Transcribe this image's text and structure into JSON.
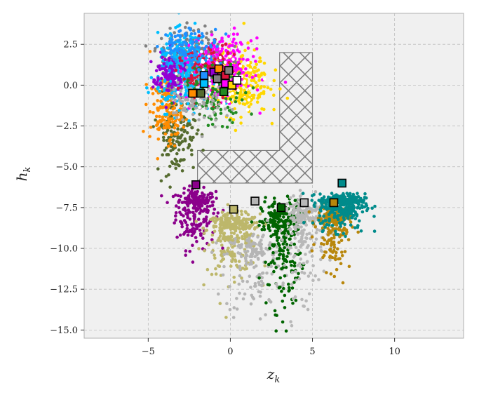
{
  "chart_data": {
    "type": "scatter",
    "title": "",
    "xlabel": "z",
    "xlabel_sub": "k",
    "ylabel": "h",
    "ylabel_sub": "k",
    "xlim": [
      -8.9,
      14.2
    ],
    "ylim": [
      -15.5,
      4.4
    ],
    "x_ticks": [
      -5,
      0,
      5,
      10
    ],
    "x_tick_labels": [
      "−5",
      "0",
      "5",
      "10"
    ],
    "y_ticks": [
      2.5,
      0.0,
      -2.5,
      -5.0,
      -7.5,
      -10.0,
      -12.5,
      -15.0
    ],
    "y_tick_labels": [
      "2.5",
      "0.0",
      "−2.5",
      "−5.0",
      "−7.5",
      "−10.0",
      "−12.5",
      "−15.0"
    ],
    "grid": true,
    "background_color": "#f0f0f0",
    "hatched_region": {
      "polygon": [
        [
          3,
          2
        ],
        [
          5,
          2
        ],
        [
          5,
          -6
        ],
        [
          -2,
          -6
        ],
        [
          -2,
          -4
        ],
        [
          3,
          -4
        ]
      ],
      "pattern": "cross-hatch",
      "color": "#808080"
    },
    "clusters": [
      {
        "color": "#8b008b",
        "center": [
          -2.1,
          -6.1
        ],
        "spread": [
          0.6,
          1.0
        ],
        "count": 260,
        "shape": "cloud"
      },
      {
        "color": "#bdb76b",
        "center": [
          0.2,
          -7.6
        ],
        "spread": [
          0.8,
          1.0
        ],
        "count": 320,
        "shape": "cloud"
      },
      {
        "color": "#b5b5b5",
        "center": [
          1.5,
          -9.2
        ],
        "spread": [
          0.9,
          1.5
        ],
        "count": 170,
        "shape": "cloud"
      },
      {
        "color": "#006400",
        "center": [
          3.1,
          -7.5
        ],
        "spread": [
          0.6,
          1.8
        ],
        "count": 280,
        "shape": "cloud"
      },
      {
        "color": "#b8b8b8",
        "center": [
          4.5,
          -7.2
        ],
        "spread": [
          0.6,
          1.6
        ],
        "count": 230,
        "shape": "cloud"
      },
      {
        "color": "#b8860b",
        "center": [
          6.3,
          -7.2
        ],
        "spread": [
          0.5,
          1.1
        ],
        "count": 210,
        "shape": "cloud"
      },
      {
        "color": "#008b8b",
        "center": [
          6.8,
          -6.0
        ],
        "spread": [
          0.7,
          0.6
        ],
        "count": 360,
        "shape": "cloud"
      },
      {
        "color": "#556b2f",
        "center": [
          -3.3,
          -3.0
        ],
        "spread": [
          0.6,
          1.2
        ],
        "count": 140,
        "shape": "cloud"
      },
      {
        "color": "#ff8c00",
        "center": [
          -3.9,
          -1.5
        ],
        "spread": [
          0.5,
          1.0
        ],
        "count": 150,
        "shape": "cloud"
      },
      {
        "color": "#ffd700",
        "center": [
          0.5,
          0.2
        ],
        "spread": [
          0.9,
          1.0
        ],
        "count": 280,
        "shape": "cloud"
      },
      {
        "color": "#808080",
        "center": [
          -2.2,
          1.6
        ],
        "spread": [
          1.0,
          0.9
        ],
        "count": 300,
        "shape": "cloud"
      },
      {
        "color": "#00bfff",
        "center": [
          -2.8,
          0.8
        ],
        "spread": [
          0.8,
          1.1
        ],
        "count": 350,
        "shape": "cloud"
      },
      {
        "color": "#ff00ff",
        "center": [
          -0.5,
          1.0
        ],
        "spread": [
          0.9,
          0.9
        ],
        "count": 300,
        "shape": "cloud"
      },
      {
        "color": "#9400d3",
        "center": [
          -3.7,
          0.6
        ],
        "spread": [
          0.5,
          0.7
        ],
        "count": 120,
        "shape": "cloud"
      },
      {
        "color": "#dc143c",
        "center": [
          -1.5,
          0.8
        ],
        "spread": [
          0.8,
          0.9
        ],
        "count": 130,
        "shape": "cloud"
      },
      {
        "color": "#228b22",
        "center": [
          -1.0,
          -0.5
        ],
        "spread": [
          1.0,
          0.9
        ],
        "count": 110,
        "shape": "cloud"
      },
      {
        "color": "#1e90ff",
        "center": [
          -2.5,
          2.3
        ],
        "spread": [
          0.9,
          0.6
        ],
        "count": 110,
        "shape": "cloud"
      },
      {
        "color": "#a9a9a9",
        "center": [
          -1.9,
          -0.8
        ],
        "spread": [
          0.9,
          0.8
        ],
        "count": 90,
        "shape": "cloud"
      },
      {
        "color": "#ffffff",
        "center": [
          -0.4,
          0.4
        ],
        "spread": [
          1.2,
          1.0
        ],
        "count": 60,
        "shape": "cloud"
      }
    ],
    "markers": [
      {
        "x": -2.1,
        "y": -6.1,
        "color": "#8b008b"
      },
      {
        "x": 0.2,
        "y": -7.6,
        "color": "#bdb76b"
      },
      {
        "x": 1.5,
        "y": -7.1,
        "color": "#b5b5b5"
      },
      {
        "x": 3.1,
        "y": -7.5,
        "color": "#006400"
      },
      {
        "x": 4.5,
        "y": -7.2,
        "color": "#b8b8b8"
      },
      {
        "x": 6.3,
        "y": -7.2,
        "color": "#b8860b"
      },
      {
        "x": 6.8,
        "y": -6.0,
        "color": "#008b8b"
      },
      {
        "x": -2.3,
        "y": -0.5,
        "color": "#ff8c00"
      },
      {
        "x": -1.8,
        "y": -0.5,
        "color": "#556b2f"
      },
      {
        "x": -1.6,
        "y": 0.1,
        "color": "#00bfff"
      },
      {
        "x": -1.6,
        "y": 0.6,
        "color": "#1e90ff"
      },
      {
        "x": -1.0,
        "y": 0.8,
        "color": "#9400d3"
      },
      {
        "x": -0.7,
        "y": 1.0,
        "color": "#ff8c00"
      },
      {
        "x": -0.8,
        "y": 0.4,
        "color": "#808080"
      },
      {
        "x": -0.4,
        "y": -0.4,
        "color": "#228b22"
      },
      {
        "x": -0.3,
        "y": 0.1,
        "color": "#ff00ff"
      },
      {
        "x": -0.3,
        "y": 0.6,
        "color": "#dc143c"
      },
      {
        "x": -0.1,
        "y": 0.9,
        "color": "#808080"
      },
      {
        "x": 0.1,
        "y": 0.0,
        "color": "#ffd700"
      },
      {
        "x": 0.4,
        "y": 0.3,
        "color": "#ffffff"
      }
    ]
  }
}
